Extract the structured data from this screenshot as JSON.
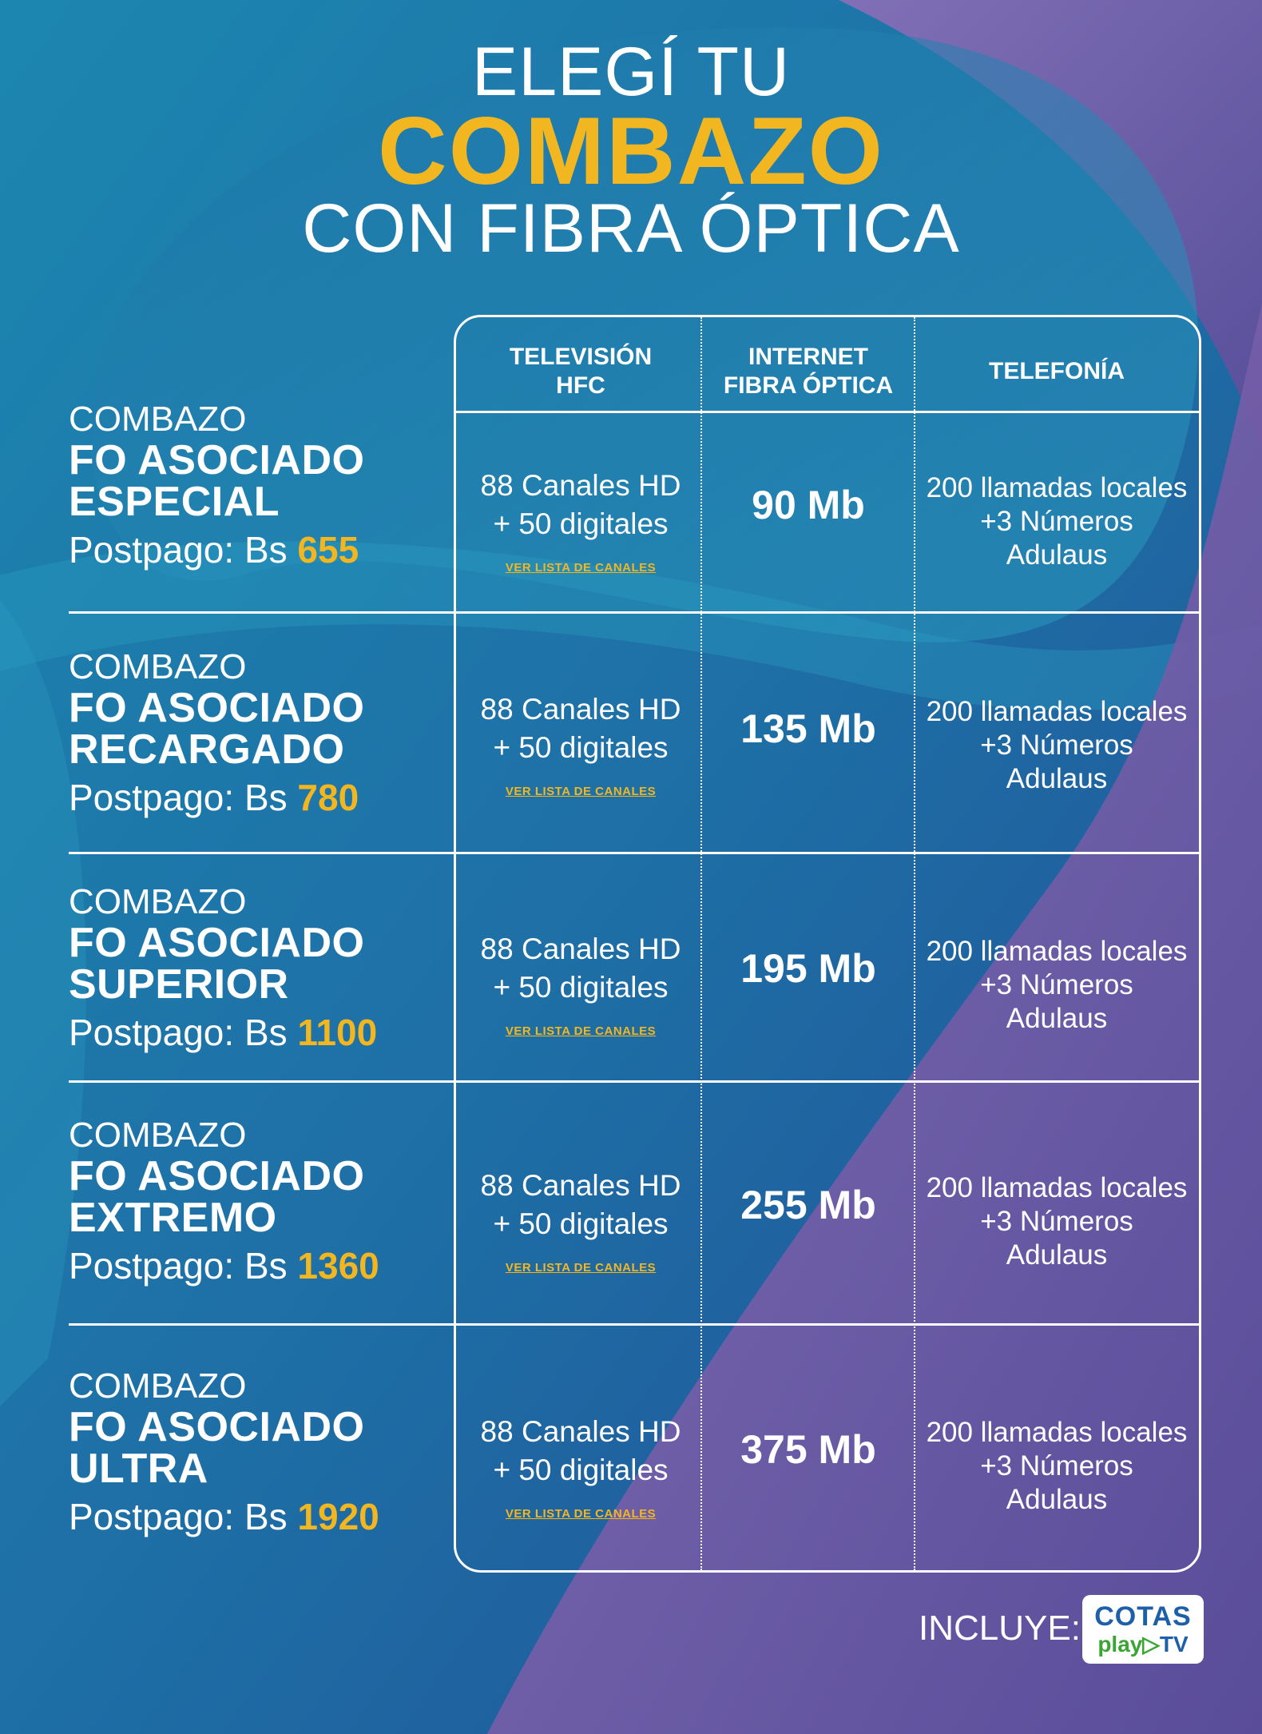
{
  "header": {
    "line1": "ELEGÍ TU",
    "line2": "COMBAZO",
    "line3": "CON FIBRA ÓPTICA"
  },
  "columns": {
    "tv": [
      "TELEVISIÓN",
      "HFC"
    ],
    "internet": [
      "INTERNET",
      "FIBRA ÓPTICA"
    ],
    "phone": [
      "TELEFONÍA"
    ]
  },
  "plans": [
    {
      "kicker": "COMBAZO",
      "name_line1": "FO ASOCIADO",
      "name_line2": "ESPECIAL",
      "price_label": "Postpago: Bs",
      "price": "655",
      "tv_line1": "88 Canales HD",
      "tv_line2": "+ 50 digitales",
      "tv_link": "VER LISTA DE CANALES",
      "internet": "90 Mb",
      "phone_line1": "200 llamadas locales",
      "phone_line2": "+3 Números",
      "phone_line3": "Adulaus"
    },
    {
      "kicker": "COMBAZO",
      "name_line1": "FO ASOCIADO",
      "name_line2": "RECARGADO",
      "price_label": "Postpago: Bs",
      "price": "780",
      "tv_line1": "88 Canales HD",
      "tv_line2": "+ 50 digitales",
      "tv_link": "VER LISTA DE CANALES",
      "internet": "135 Mb",
      "phone_line1": "200 llamadas locales",
      "phone_line2": "+3 Números",
      "phone_line3": "Adulaus"
    },
    {
      "kicker": "COMBAZO",
      "name_line1": "FO ASOCIADO",
      "name_line2": "SUPERIOR",
      "price_label": "Postpago: Bs",
      "price": "1100",
      "tv_line1": "88 Canales HD",
      "tv_line2": "+ 50 digitales",
      "tv_link": "VER LISTA DE CANALES",
      "internet": "195 Mb",
      "phone_line1": "200 llamadas locales",
      "phone_line2": "+3 Números",
      "phone_line3": "Adulaus"
    },
    {
      "kicker": "COMBAZO",
      "name_line1": "FO ASOCIADO",
      "name_line2": "EXTREMO",
      "price_label": "Postpago: Bs",
      "price": "1360",
      "tv_line1": "88 Canales HD",
      "tv_line2": "+ 50 digitales",
      "tv_link": "VER LISTA DE CANALES",
      "internet": "255 Mb",
      "phone_line1": "200 llamadas locales",
      "phone_line2": "+3 Números",
      "phone_line3": "Adulaus"
    },
    {
      "kicker": "COMBAZO",
      "name_line1": "FO ASOCIADO",
      "name_line2": "ULTRA",
      "price_label": "Postpago: Bs",
      "price": "1920",
      "tv_line1": "88 Canales HD",
      "tv_line2": "+ 50 digitales",
      "tv_link": "VER LISTA DE CANALES",
      "internet": "375 Mb",
      "phone_line1": "200 llamadas locales",
      "phone_line2": "+3 Números",
      "phone_line3": "Adulaus"
    }
  ],
  "footer": {
    "incluye": "INCLUYE:",
    "logo_top": "COTAS",
    "logo_bottom": "play",
    "logo_tv": "TV"
  },
  "colors": {
    "accent_yellow": "#f2b620",
    "blue": "#1f79a8",
    "purple": "#6a56a0"
  }
}
